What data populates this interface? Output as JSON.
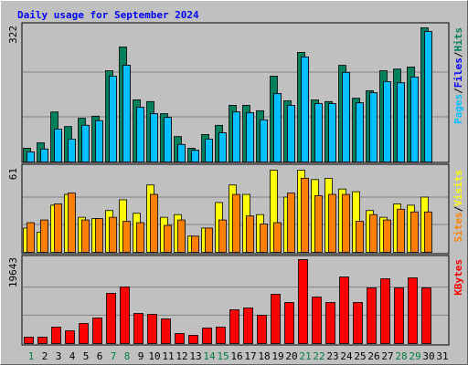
{
  "chart_data": [
    {
      "type": "bar",
      "title": "Daily usage for September 2024",
      "legend_separator": "/",
      "ylim": [
        0,
        322
      ],
      "yticks": [
        322
      ],
      "series": [
        {
          "name": "Pages",
          "color": "#00c0ff",
          "values": [
            24,
            31,
            79,
            55,
            88,
            99,
            206,
            232,
            131,
            116,
            107,
            42,
            28,
            55,
            70,
            120,
            118,
            101,
            164,
            136,
            252,
            140,
            140,
            215,
            142,
            166,
            193,
            190,
            204,
            313,
            null
          ]
        },
        {
          "name": "Files",
          "color": "#0000ff",
          "values": [
            24,
            31,
            79,
            55,
            88,
            99,
            206,
            232,
            131,
            116,
            107,
            42,
            28,
            55,
            70,
            120,
            118,
            101,
            164,
            136,
            252,
            140,
            140,
            215,
            142,
            166,
            193,
            190,
            204,
            313,
            null
          ]
        },
        {
          "name": "Hits",
          "color": "#00805c",
          "values": [
            33,
            46,
            120,
            85,
            105,
            110,
            219,
            276,
            149,
            145,
            116,
            61,
            33,
            66,
            88,
            136,
            136,
            123,
            206,
            147,
            263,
            149,
            145,
            232,
            153,
            171,
            219,
            223,
            228,
            322,
            null
          ]
        }
      ]
    },
    {
      "type": "bar",
      "legend_separator": "/",
      "ylim": [
        0,
        61
      ],
      "yticks": [
        61
      ],
      "series": [
        {
          "name": "Sites",
          "color": "#ff8000",
          "values": [
            22,
            24,
            36,
            44,
            24,
            25,
            26,
            23,
            22,
            43,
            20,
            24,
            12,
            18,
            24,
            43,
            27,
            21,
            22,
            44,
            55,
            42,
            43,
            43,
            23,
            28,
            24,
            32,
            30,
            30,
            null
          ]
        },
        {
          "name": "Visits",
          "color": "#ffff00",
          "values": [
            18,
            15,
            35,
            43,
            26,
            25,
            31,
            39,
            29,
            50,
            26,
            28,
            12,
            18,
            37,
            50,
            43,
            28,
            61,
            41,
            61,
            54,
            55,
            47,
            45,
            31,
            26,
            36,
            35,
            41,
            null
          ]
        }
      ]
    },
    {
      "type": "bar",
      "ylim": [
        0,
        19643
      ],
      "yticks": [
        19643
      ],
      "categories": [
        "1",
        "2",
        "3",
        "4",
        "5",
        "6",
        "7",
        "8",
        "9",
        "10",
        "11",
        "12",
        "13",
        "14",
        "15",
        "16",
        "17",
        "18",
        "19",
        "20",
        "21",
        "22",
        "23",
        "24",
        "25",
        "26",
        "27",
        "28",
        "29",
        "30",
        "31"
      ],
      "highlight_color": "#008040",
      "highlight_categories": [
        0,
        6,
        7,
        13,
        14,
        20,
        21,
        27,
        28
      ],
      "series": [
        {
          "name": "KBytes",
          "color": "#ff0000",
          "values": [
            1495,
            1495,
            3843,
            2989,
            4697,
            5978,
            11744,
            13238,
            7046,
            6832,
            5765,
            2349,
            1922,
            3630,
            3843,
            7900,
            8327,
            6619,
            11530,
            9608,
            19643,
            10889,
            9608,
            15586,
            9608,
            13024,
            15159,
            13024,
            15372,
            13024,
            null
          ]
        }
      ]
    }
  ]
}
